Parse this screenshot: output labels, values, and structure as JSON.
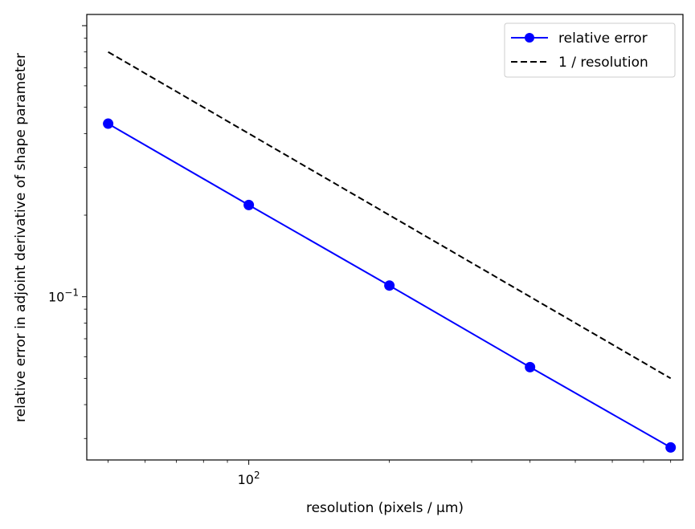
{
  "chart_data": {
    "type": "line",
    "xlabel": "resolution (pixels / μm)",
    "ylabel": "relative error in adjoint derivative of shape parameter",
    "xscale": "log",
    "yscale": "log",
    "xlim": [
      45,
      850
    ],
    "ylim": [
      0.025,
      1.1
    ],
    "x_ticks": [
      {
        "value": 100,
        "base": "10",
        "exp": "2"
      }
    ],
    "y_ticks": [
      {
        "value": 0.1,
        "base": "10",
        "exp": "−1"
      }
    ],
    "grid": false,
    "legend_position": "top-right",
    "series": [
      {
        "name": "relative error",
        "color": "#0000ff",
        "style": "solid",
        "marker": "circle",
        "x": [
          50,
          100,
          200,
          400,
          800
        ],
        "y": [
          0.435,
          0.218,
          0.11,
          0.055,
          0.0278
        ]
      },
      {
        "name": "1 / resolution",
        "color": "#000000",
        "style": "dashed",
        "marker": "none",
        "x": [
          50,
          800
        ],
        "y": [
          0.8,
          0.05
        ]
      }
    ]
  }
}
